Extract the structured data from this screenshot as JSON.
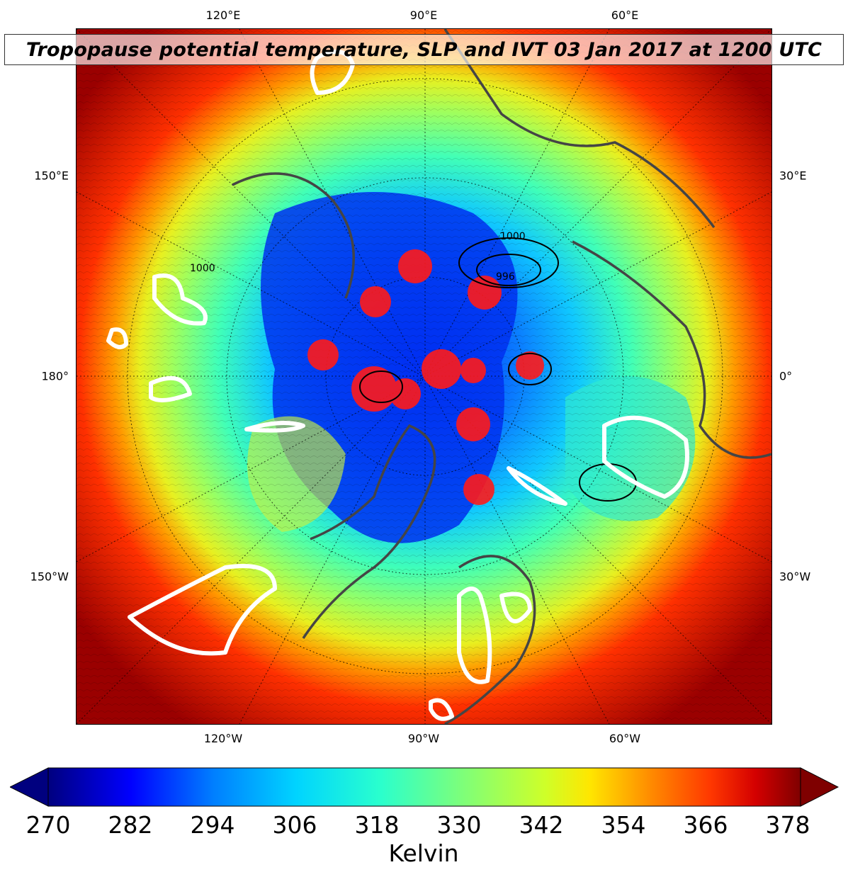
{
  "title": "Tropopause potential temperature, SLP and IVT 03 Jan 2017 at 1200 UTC",
  "axes": {
    "top_ticks": [
      "120°E",
      "90°E",
      "60°E"
    ],
    "bottom_ticks": [
      "120°W",
      "90°W",
      "60°W"
    ],
    "left_ticks": [
      "150°E",
      "180°",
      "150°W"
    ],
    "right_ticks": [
      "30°E",
      "0°",
      "30°W"
    ]
  },
  "contour_labels": [
    "1000",
    "1000",
    "996"
  ],
  "colorbar": {
    "ticks": [
      "270",
      "282",
      "294",
      "306",
      "318",
      "330",
      "342",
      "354",
      "366",
      "378"
    ],
    "unit": "Kelvin",
    "colors": [
      "#00007f",
      "#0000ff",
      "#007fff",
      "#00d4ff",
      "#29ffce",
      "#7dff7a",
      "#ceff29",
      "#ffe600",
      "#ff8c00",
      "#ff3800",
      "#d40000",
      "#7f0000"
    ]
  }
}
